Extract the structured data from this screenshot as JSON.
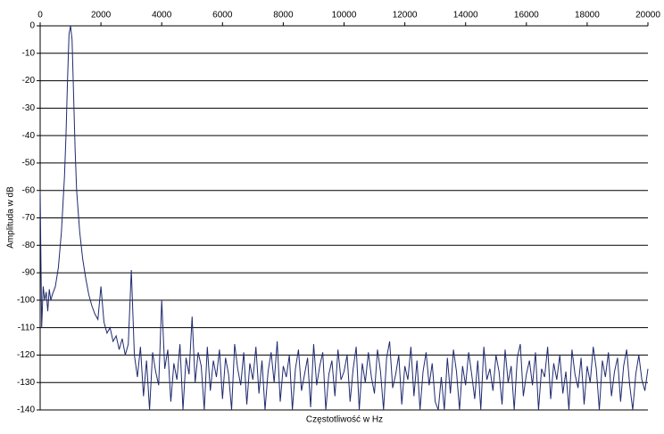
{
  "chart_data": {
    "type": "line",
    "x_label": "Częstotliwość w Hz",
    "y_label": "Amplituda w dB",
    "x": [
      0,
      50,
      100,
      150,
      200,
      250,
      300,
      350,
      400,
      500,
      600,
      700,
      800,
      850,
      900,
      950,
      1000,
      1050,
      1100,
      1150,
      1200,
      1300,
      1400,
      1500,
      1600,
      1700,
      1800,
      1900,
      2000,
      2100,
      2200,
      2300,
      2400,
      2500,
      2600,
      2700,
      2800,
      2900,
      3000,
      3100,
      3200,
      3300,
      3400,
      3500,
      3600,
      3700,
      3800,
      3900,
      4000,
      4100,
      4200,
      4300,
      4400,
      4500,
      4600,
      4700,
      4800,
      4900,
      5000,
      5100,
      5200,
      5300,
      5400,
      5500,
      5600,
      5700,
      5800,
      5900,
      6000,
      6100,
      6200,
      6300,
      6400,
      6500,
      6600,
      6700,
      6800,
      6900,
      7000,
      7100,
      7200,
      7300,
      7400,
      7500,
      7600,
      7700,
      7800,
      7900,
      8000,
      8100,
      8200,
      8300,
      8400,
      8500,
      8600,
      8700,
      8800,
      8900,
      9000,
      9100,
      9200,
      9300,
      9400,
      9500,
      9600,
      9700,
      9800,
      9900,
      10000,
      10100,
      10200,
      10300,
      10400,
      10500,
      10600,
      10700,
      10800,
      10900,
      11000,
      11100,
      11200,
      11300,
      11400,
      11500,
      11600,
      11700,
      11800,
      11900,
      12000,
      12100,
      12200,
      12300,
      12400,
      12500,
      12600,
      12700,
      12800,
      12900,
      13000,
      13100,
      13200,
      13300,
      13400,
      13500,
      13600,
      13700,
      13800,
      13900,
      14000,
      14100,
      14200,
      14300,
      14400,
      14500,
      14600,
      14700,
      14800,
      14900,
      15000,
      15100,
      15200,
      15300,
      15400,
      15500,
      15600,
      15700,
      15800,
      15900,
      16000,
      16100,
      16200,
      16300,
      16400,
      16500,
      16600,
      16700,
      16800,
      16900,
      17000,
      17100,
      17200,
      17300,
      17400,
      17500,
      17600,
      17700,
      17800,
      17900,
      18000,
      18100,
      18200,
      18300,
      18400,
      18500,
      18600,
      18700,
      18800,
      18900,
      19000,
      19100,
      19200,
      19300,
      19400,
      19500,
      19600,
      19700,
      19800,
      19900,
      20000
    ],
    "values": [
      -60,
      -110,
      -95,
      -100,
      -97,
      -104,
      -96,
      -100,
      -98,
      -95,
      -88,
      -75,
      -55,
      -40,
      -20,
      -3,
      0,
      -5,
      -25,
      -45,
      -60,
      -75,
      -85,
      -92,
      -98,
      -102,
      -105,
      -107,
      -95,
      -108,
      -112,
      -110,
      -115,
      -113,
      -118,
      -114,
      -120,
      -116,
      -89,
      -120,
      -128,
      -117,
      -135,
      -122,
      -140,
      -119,
      -126,
      -131,
      -100,
      -125,
      -118,
      -137,
      -123,
      -129,
      -116,
      -140,
      -121,
      -127,
      -106,
      -130,
      -119,
      -124,
      -140,
      -117,
      -133,
      -122,
      -128,
      -118,
      -136,
      -121,
      -127,
      -140,
      -116,
      -125,
      -131,
      -119,
      -138,
      -123,
      -129,
      -117,
      -134,
      -122,
      -140,
      -126,
      -119,
      -130,
      -115,
      -137,
      -124,
      -128,
      -120,
      -140,
      -125,
      -118,
      -133,
      -127,
      -121,
      -139,
      -116,
      -131,
      -124,
      -119,
      -140,
      -127,
      -122,
      -135,
      -118,
      -129,
      -126,
      -120,
      -137,
      -125,
      -117,
      -140,
      -123,
      -130,
      -119,
      -128,
      -134,
      -118,
      -126,
      -140,
      -121,
      -115,
      -132,
      -127,
      -120,
      -138,
      -124,
      -129,
      -117,
      -135,
      -122,
      -140,
      -126,
      -119,
      -131,
      -123,
      -137,
      -140,
      -128,
      -140,
      -121,
      -134,
      -118,
      -126,
      -140,
      -124,
      -131,
      -119,
      -127,
      -136,
      -122,
      -140,
      -117,
      -129,
      -125,
      -133,
      -120,
      -126,
      -138,
      -118,
      -130,
      -124,
      -140,
      -121,
      -116,
      -135,
      -127,
      -122,
      -131,
      -119,
      -140,
      -125,
      -128,
      -117,
      -136,
      -123,
      -129,
      -120,
      -134,
      -126,
      -140,
      -118,
      -127,
      -132,
      -121,
      -138,
      -124,
      -130,
      -117,
      -125,
      -140,
      -122,
      -128,
      -119,
      -135,
      -126,
      -121,
      -137,
      -124,
      -118,
      -131,
      -140,
      -127,
      -120,
      -129,
      -133,
      -125
    ],
    "color": "#1f2a6e",
    "xlim": [
      0,
      20000
    ],
    "xticks": [
      0,
      2000,
      4000,
      6000,
      8000,
      10000,
      12000,
      14000,
      16000,
      18000,
      20000
    ],
    "ylim": [
      -140,
      0
    ],
    "yticks": [
      0,
      -10,
      -20,
      -30,
      -40,
      -50,
      -60,
      -70,
      -80,
      -90,
      -100,
      -110,
      -120,
      -130,
      -140
    ],
    "grid": true
  }
}
